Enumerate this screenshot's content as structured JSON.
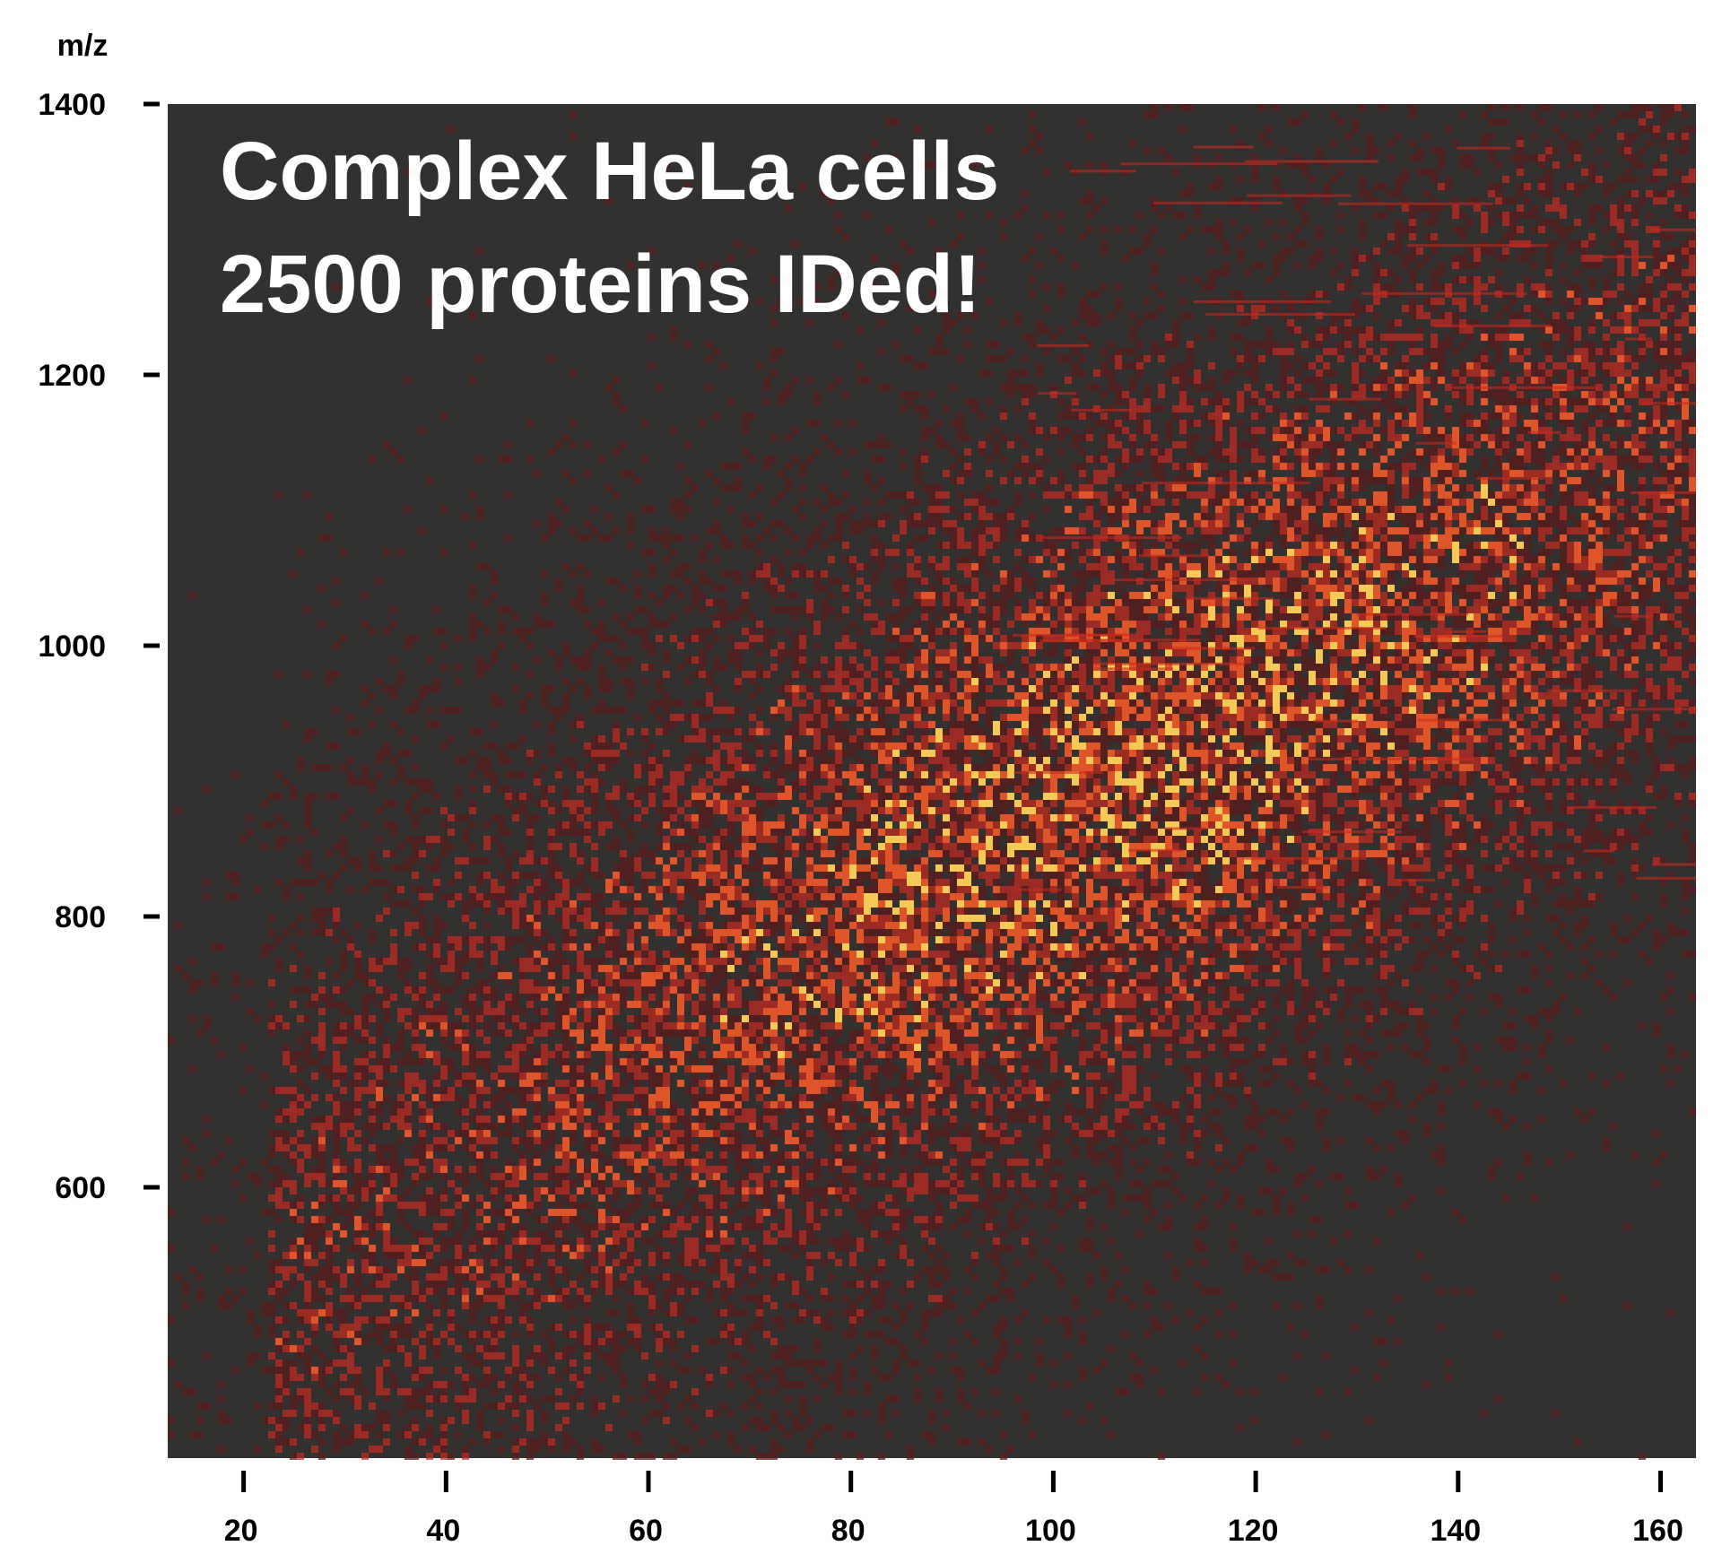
{
  "chart_data": {
    "type": "heatmap",
    "title_lines": [
      "Complex HeLa cells",
      "2500 proteins IDed!"
    ],
    "ylabel": "m/z",
    "xlabel": "",
    "xlim": [
      12.5,
      163.5
    ],
    "ylim": [
      400,
      1400
    ],
    "xticks": [
      20,
      40,
      60,
      80,
      100,
      120,
      140,
      160
    ],
    "yticks": [
      600,
      800,
      1000,
      1200,
      1400
    ],
    "grid": false,
    "legend": "none",
    "colors": {
      "background": "#333030",
      "low": "#5a1c1c",
      "mid": "#c82a1e",
      "high": "#ff5a28",
      "peak": "#ffd35a"
    },
    "density_center": {
      "x": 110,
      "y": 870
    },
    "density_spread": {
      "x": 40,
      "y": 250
    }
  }
}
